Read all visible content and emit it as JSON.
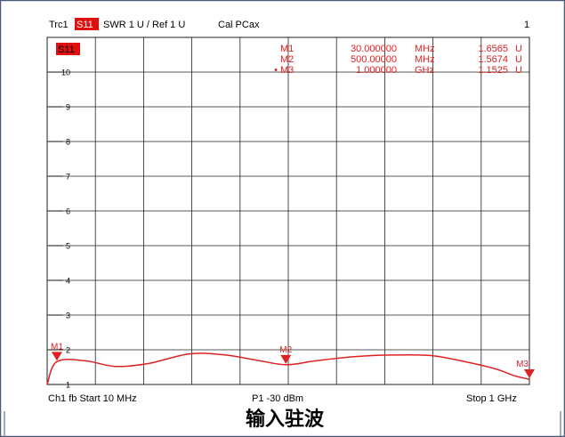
{
  "header": {
    "trace": "Trc1",
    "param": "S11",
    "format": "SWR  1 U /  Ref 1 U",
    "cal": "Cal PCax",
    "channel_num": "1"
  },
  "trace_tag": "S11",
  "footer": {
    "channel": "Ch1  fb  Start  10 MHz",
    "power": "P1  -30 dBm",
    "stop": "Stop  1 GHz"
  },
  "caption": "输入驻波",
  "markers": [
    {
      "label": "M1",
      "value": "30.000000",
      "unit": "MHz",
      "reading": "1.6565",
      "reading_unit": "U",
      "active": false
    },
    {
      "label": "M2",
      "value": "500.00000",
      "unit": "MHz",
      "reading": "1.5674",
      "reading_unit": "U",
      "active": false
    },
    {
      "label": "M3",
      "value": "1.000000",
      "unit": "GHz",
      "reading": "1.1525",
      "reading_unit": "U",
      "active": true
    }
  ],
  "colors": {
    "trace": "#dd2222",
    "grid": "#222222",
    "tag_bg": "#e01010"
  },
  "chart_data": {
    "type": "line",
    "title": "",
    "xlabel": "",
    "ylabel": "",
    "x_unit": "MHz",
    "xlim": [
      10,
      1000
    ],
    "ylim": [
      1,
      11
    ],
    "yticks": [
      1,
      2,
      3,
      4,
      5,
      6,
      7,
      8,
      9,
      10
    ],
    "grid": true,
    "series": [
      {
        "name": "S11",
        "x": [
          10,
          30,
          90,
          150,
          220,
          300,
          370,
          440,
          500,
          560,
          640,
          720,
          800,
          870,
          930,
          970,
          1000
        ],
        "y": [
          1.0,
          1.66,
          1.68,
          1.52,
          1.61,
          1.88,
          1.86,
          1.7,
          1.57,
          1.68,
          1.8,
          1.85,
          1.83,
          1.65,
          1.45,
          1.25,
          1.15
        ]
      }
    ],
    "marker_points": [
      {
        "label": "M1",
        "x": 30,
        "y": 1.6565
      },
      {
        "label": "M2",
        "x": 500,
        "y": 1.5674
      },
      {
        "label": "M3",
        "x": 1000,
        "y": 1.1525
      }
    ]
  }
}
